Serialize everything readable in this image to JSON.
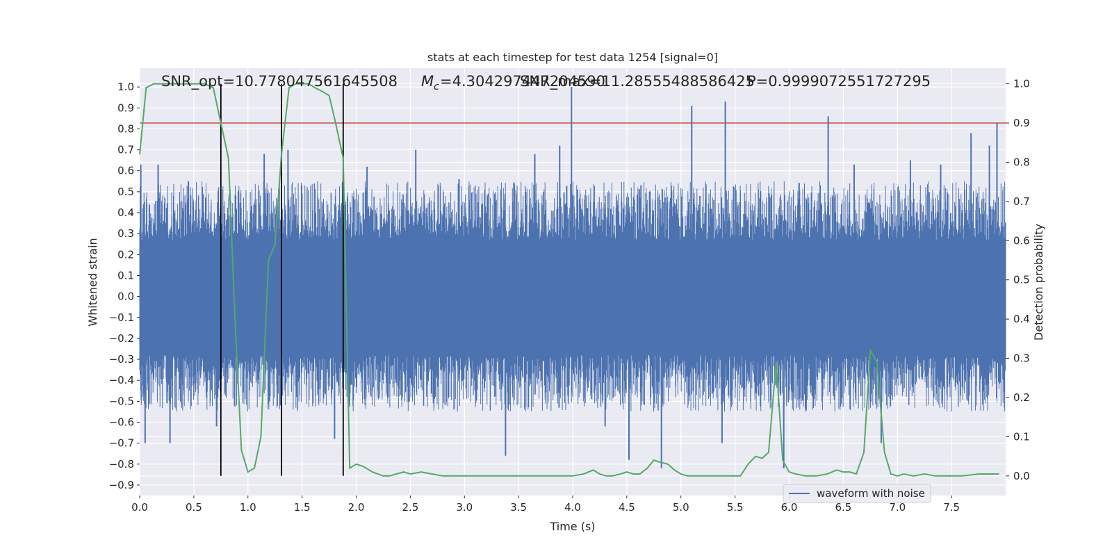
{
  "chart_data": {
    "type": "line",
    "title": "stats at each timestep for test data 1254 [signal=0]",
    "xlabel": "Time (s)",
    "ylabel": "Whitened strain",
    "y2label": "Detection probability",
    "xlim": [
      0,
      8
    ],
    "ylim": [
      -0.95,
      1.09
    ],
    "y2lim": [
      -0.05,
      1.04
    ],
    "xticks": [
      "0.0",
      "0.5",
      "1.0",
      "1.5",
      "2.0",
      "2.5",
      "3.0",
      "3.5",
      "4.0",
      "4.5",
      "5.0",
      "5.5",
      "6.0",
      "6.5",
      "7.0",
      "7.5"
    ],
    "yticks": [
      "1.0",
      "0.9",
      "0.8",
      "0.7",
      "0.6",
      "0.5",
      "0.4",
      "0.3",
      "0.2",
      "0.1",
      "0.0",
      "−0.1",
      "−0.2",
      "−0.3",
      "−0.4",
      "−0.5",
      "−0.6",
      "−0.7",
      "−0.8",
      "−0.9"
    ],
    "y2ticks": [
      "1.0",
      "0.9",
      "0.8",
      "0.7",
      "0.6",
      "0.5",
      "0.4",
      "0.3",
      "0.2",
      "0.1",
      "0.0"
    ],
    "grid": true,
    "legend": {
      "placement": "lower-right",
      "entries": [
        "waveform with noise"
      ]
    },
    "annotations": {
      "snr": "SNR_opt=10.778047561645508",
      "mc": "=4.304297447204590",
      "mc_symbol_main": "M",
      "mc_symbol_sub": "c",
      "snr_max": "SNR_max=11.28555488586425",
      "p": "P=0.9999072551727295"
    },
    "threshold": 0.9,
    "vlines": [
      0.75,
      1.31,
      1.88
    ],
    "waveform_envelope": {
      "name": "waveform with noise",
      "dense_band": [
        -0.28,
        0.27
      ],
      "typical_extent": [
        -0.55,
        0.55
      ],
      "peaks": [
        {
          "x": 0.01,
          "y": 0.63
        },
        {
          "x": 0.05,
          "y": -0.7
        },
        {
          "x": 0.17,
          "y": 0.63
        },
        {
          "x": 0.28,
          "y": -0.7
        },
        {
          "x": 0.45,
          "y": 0.55
        },
        {
          "x": 0.71,
          "y": -0.62
        },
        {
          "x": 1.15,
          "y": 0.68
        },
        {
          "x": 1.3,
          "y": -0.52
        },
        {
          "x": 1.37,
          "y": 0.7
        },
        {
          "x": 1.8,
          "y": -0.68
        },
        {
          "x": 2.1,
          "y": 0.62
        },
        {
          "x": 2.55,
          "y": 0.7
        },
        {
          "x": 2.95,
          "y": 0.56
        },
        {
          "x": 3.38,
          "y": -0.76
        },
        {
          "x": 3.65,
          "y": 0.68
        },
        {
          "x": 3.88,
          "y": 0.72
        },
        {
          "x": 3.99,
          "y": 1.0
        },
        {
          "x": 4.3,
          "y": -0.62
        },
        {
          "x": 4.52,
          "y": -0.78
        },
        {
          "x": 4.82,
          "y": -0.82
        },
        {
          "x": 5.1,
          "y": 0.91
        },
        {
          "x": 5.41,
          "y": 0.93
        },
        {
          "x": 5.38,
          "y": -0.7
        },
        {
          "x": 5.95,
          "y": -0.82
        },
        {
          "x": 6.36,
          "y": 0.86
        },
        {
          "x": 6.6,
          "y": 0.63
        },
        {
          "x": 6.85,
          "y": -0.7
        },
        {
          "x": 7.12,
          "y": 0.65
        },
        {
          "x": 7.4,
          "y": 0.63
        },
        {
          "x": 7.68,
          "y": 0.78
        },
        {
          "x": 7.85,
          "y": 0.72
        },
        {
          "x": 7.92,
          "y": 0.83
        }
      ]
    },
    "detection_probability": {
      "x": [
        0.0,
        0.06,
        0.13,
        0.2,
        0.3,
        0.4,
        0.5,
        0.6,
        0.68,
        0.75,
        0.82,
        0.88,
        0.94,
        1.0,
        1.06,
        1.12,
        1.19,
        1.25,
        1.31,
        1.38,
        1.44,
        1.5,
        1.56,
        1.62,
        1.69,
        1.75,
        1.81,
        1.88,
        1.94,
        2.0,
        2.06,
        2.15,
        2.25,
        2.31,
        2.37,
        2.44,
        2.5,
        2.6,
        2.7,
        2.8,
        2.9,
        3.0,
        3.2,
        3.4,
        3.6,
        3.8,
        4.0,
        4.1,
        4.19,
        4.25,
        4.31,
        4.37,
        4.44,
        4.5,
        4.56,
        4.62,
        4.69,
        4.75,
        4.81,
        4.88,
        4.94,
        5.0,
        5.06,
        5.2,
        5.4,
        5.55,
        5.62,
        5.69,
        5.75,
        5.81,
        5.88,
        5.94,
        6.0,
        6.06,
        6.15,
        6.25,
        6.35,
        6.44,
        6.5,
        6.56,
        6.62,
        6.69,
        6.75,
        6.81,
        6.88,
        6.94,
        7.0,
        7.06,
        7.15,
        7.25,
        7.35,
        7.5,
        7.6,
        7.75,
        7.85,
        7.94
      ],
      "y": [
        0.82,
        0.99,
        1.0,
        1.0,
        1.0,
        1.0,
        1.0,
        1.0,
        0.99,
        0.9,
        0.81,
        0.4,
        0.065,
        0.01,
        0.02,
        0.1,
        0.55,
        0.59,
        0.82,
        0.99,
        1.0,
        1.0,
        1.0,
        0.99,
        0.98,
        0.97,
        0.9,
        0.81,
        0.02,
        0.03,
        0.025,
        0.01,
        0.0,
        0.0,
        0.005,
        0.01,
        0.005,
        0.01,
        0.005,
        0.0,
        0.0,
        0.0,
        0.0,
        0.0,
        0.0,
        0.0,
        0.0,
        0.005,
        0.015,
        0.005,
        0.0,
        0.0,
        0.005,
        0.01,
        0.005,
        0.005,
        0.02,
        0.04,
        0.035,
        0.03,
        0.015,
        0.005,
        0.0,
        0.0,
        0.0,
        0.0,
        0.03,
        0.05,
        0.045,
        0.06,
        0.29,
        0.04,
        0.01,
        0.005,
        0.0,
        0.0,
        0.005,
        0.015,
        0.01,
        0.01,
        0.005,
        0.06,
        0.32,
        0.29,
        0.06,
        0.005,
        0.0,
        0.005,
        0.0,
        0.005,
        0.0,
        0.0,
        0.0,
        0.005,
        0.005,
        0.005
      ]
    },
    "colors": {
      "waveform": "#4c72b0",
      "probability": "#55a868",
      "threshold": "#c44e52",
      "vlines": "#000000",
      "axes_bg": "#eaeaf2",
      "grid": "#ffffff",
      "text": "#262626"
    }
  }
}
